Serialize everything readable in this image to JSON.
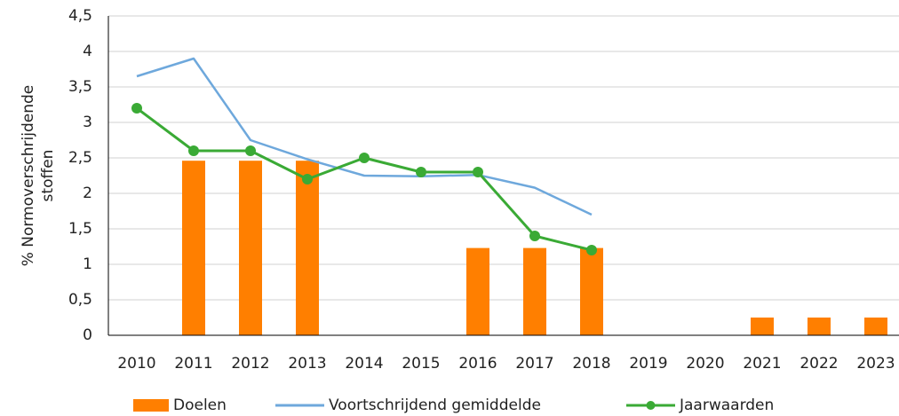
{
  "chart_data": {
    "type": "bar-line",
    "ylabel": [
      "% Normoverschrijdende",
      "stoffen"
    ],
    "categories": [
      "2010",
      "2011",
      "2012",
      "2013",
      "2014",
      "2015",
      "2016",
      "2017",
      "2018",
      "2019",
      "2020",
      "2021",
      "2022",
      "2023"
    ],
    "ylim": [
      0,
      4.5
    ],
    "yticks": [
      0,
      {
        "value": 0.5,
        "label": "0,5"
      },
      1,
      {
        "value": 1.5,
        "label": "1,5"
      },
      2,
      {
        "value": 2.5,
        "label": "2,5"
      },
      3,
      {
        "value": 3.5,
        "label": "3,5"
      },
      4,
      {
        "value": 4.5,
        "label": "4,5"
      }
    ],
    "grid": true,
    "legend": "bottom",
    "series": [
      {
        "name": "Doelen",
        "type": "bar",
        "color": "#ff7f00",
        "values": [
          null,
          2.46,
          2.46,
          2.46,
          null,
          null,
          1.23,
          1.23,
          1.23,
          null,
          null,
          0.25,
          0.25,
          0.25
        ]
      },
      {
        "name": "Voortschrijdend gemiddelde",
        "type": "line",
        "color": "#6ea8dc",
        "values": [
          3.65,
          3.9,
          2.75,
          2.48,
          2.25,
          2.24,
          2.26,
          2.08,
          1.7,
          null,
          null,
          null,
          null,
          null
        ]
      },
      {
        "name": "Jaarwaarden",
        "type": "line-marker",
        "color": "#3aaa35",
        "values": [
          3.2,
          2.6,
          2.6,
          2.2,
          2.5,
          2.3,
          2.3,
          1.4,
          1.2,
          null,
          null,
          null,
          null,
          null
        ]
      }
    ]
  }
}
